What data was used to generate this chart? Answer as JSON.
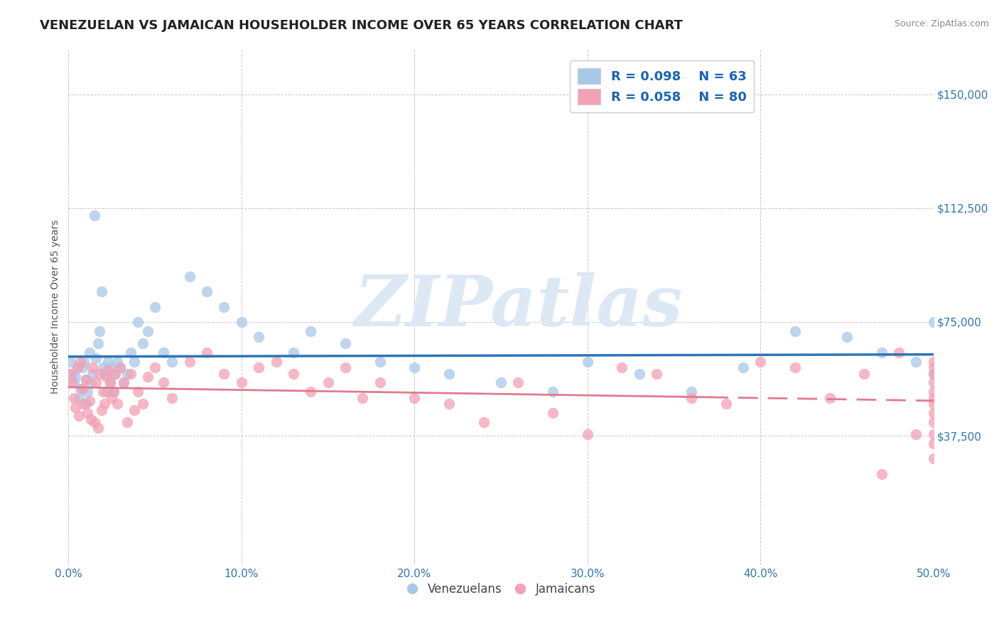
{
  "title": "VENEZUELAN VS JAMAICAN HOUSEHOLDER INCOME OVER 65 YEARS CORRELATION CHART",
  "source": "Source: ZipAtlas.com",
  "ylabel": "Householder Income Over 65 years",
  "xlim": [
    0.0,
    0.5
  ],
  "ylim": [
    -5000,
    165000
  ],
  "yticks": [
    37500,
    75000,
    112500,
    150000
  ],
  "ytick_labels": [
    "$37,500",
    "$75,000",
    "$112,500",
    "$150,000"
  ],
  "xticks": [
    0.0,
    0.1,
    0.2,
    0.3,
    0.4,
    0.5
  ],
  "xtick_labels": [
    "0.0%",
    "10.0%",
    "20.0%",
    "30.0%",
    "40.0%",
    "50.0%"
  ],
  "blue_scatter_color": "#a8c8e8",
  "pink_scatter_color": "#f4a0b5",
  "trend_blue": "#2e75b6",
  "trend_pink": "#e07b8f",
  "grid_color": "#c8c8c8",
  "background_color": "#ffffff",
  "legend_label_blue": "Venezuelans",
  "legend_label_pink": "Jamaicans",
  "watermark": "ZIPatlas",
  "watermark_color": "#dde8f5",
  "title_fontsize": 13,
  "label_fontsize": 10,
  "tick_fontsize": 11,
  "legend_fontsize": 13,
  "blue_x": [
    0.001,
    0.002,
    0.003,
    0.004,
    0.005,
    0.006,
    0.007,
    0.008,
    0.009,
    0.01,
    0.01,
    0.011,
    0.012,
    0.013,
    0.014,
    0.015,
    0.016,
    0.017,
    0.018,
    0.019,
    0.02,
    0.021,
    0.022,
    0.023,
    0.024,
    0.025,
    0.026,
    0.027,
    0.028,
    0.03,
    0.032,
    0.034,
    0.036,
    0.038,
    0.04,
    0.043,
    0.046,
    0.05,
    0.055,
    0.06,
    0.07,
    0.08,
    0.09,
    0.1,
    0.11,
    0.13,
    0.14,
    0.16,
    0.18,
    0.2,
    0.22,
    0.25,
    0.28,
    0.3,
    0.33,
    0.36,
    0.39,
    0.42,
    0.45,
    0.47,
    0.49,
    0.5,
    0.5
  ],
  "blue_y": [
    62000,
    58000,
    55000,
    57000,
    60000,
    50000,
    53000,
    60000,
    62000,
    56000,
    48000,
    52000,
    65000,
    55000,
    58000,
    110000,
    63000,
    68000,
    72000,
    85000,
    60000,
    58000,
    52000,
    62000,
    55000,
    60000,
    52000,
    58000,
    62000,
    60000,
    55000,
    58000,
    65000,
    62000,
    75000,
    68000,
    72000,
    80000,
    65000,
    62000,
    90000,
    85000,
    80000,
    75000,
    70000,
    65000,
    72000,
    68000,
    62000,
    60000,
    58000,
    55000,
    52000,
    62000,
    58000,
    52000,
    60000,
    72000,
    70000,
    65000,
    62000,
    75000,
    58000
  ],
  "pink_x": [
    0.001,
    0.002,
    0.003,
    0.004,
    0.005,
    0.006,
    0.007,
    0.008,
    0.009,
    0.01,
    0.011,
    0.012,
    0.013,
    0.014,
    0.015,
    0.016,
    0.017,
    0.018,
    0.019,
    0.02,
    0.021,
    0.022,
    0.023,
    0.024,
    0.025,
    0.026,
    0.027,
    0.028,
    0.03,
    0.032,
    0.034,
    0.036,
    0.038,
    0.04,
    0.043,
    0.046,
    0.05,
    0.055,
    0.06,
    0.07,
    0.08,
    0.09,
    0.1,
    0.11,
    0.12,
    0.13,
    0.14,
    0.15,
    0.16,
    0.17,
    0.18,
    0.2,
    0.22,
    0.24,
    0.26,
    0.28,
    0.3,
    0.32,
    0.34,
    0.36,
    0.38,
    0.4,
    0.42,
    0.44,
    0.46,
    0.47,
    0.48,
    0.49,
    0.5,
    0.5,
    0.5,
    0.5,
    0.5,
    0.5,
    0.5,
    0.5,
    0.5,
    0.5,
    0.5,
    0.5
  ],
  "pink_y": [
    58000,
    55000,
    50000,
    47000,
    60000,
    44000,
    62000,
    53000,
    48000,
    56000,
    45000,
    49000,
    43000,
    60000,
    42000,
    55000,
    40000,
    58000,
    46000,
    52000,
    48000,
    57000,
    59000,
    55000,
    50000,
    52000,
    58000,
    48000,
    60000,
    55000,
    42000,
    58000,
    46000,
    52000,
    48000,
    57000,
    60000,
    55000,
    50000,
    62000,
    65000,
    58000,
    55000,
    60000,
    62000,
    58000,
    52000,
    55000,
    60000,
    50000,
    55000,
    50000,
    48000,
    42000,
    55000,
    45000,
    38000,
    60000,
    58000,
    50000,
    48000,
    62000,
    60000,
    50000,
    58000,
    25000,
    65000,
    38000,
    62000,
    60000,
    58000,
    50000,
    42000,
    38000,
    45000,
    52000,
    48000,
    35000,
    30000,
    55000
  ]
}
